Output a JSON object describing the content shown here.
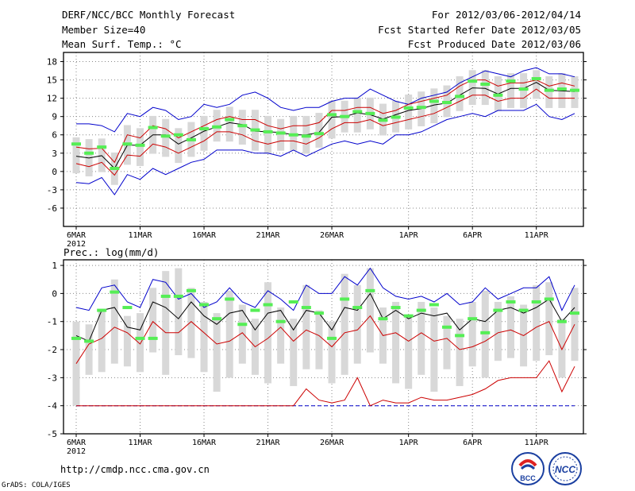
{
  "header": {
    "title": "DERF/NCC/BCC Monthly Forecast",
    "member_size": "Member Size=40",
    "variable": "Mean Surf. Temp.: °C",
    "period": "For 2012/03/06-2012/04/14",
    "refer_date": "Fcst Started Refer Date 2012/03/05",
    "produced_date": "Fcst Produced Date 2012/03/06"
  },
  "footer": {
    "url": "http://cmdp.ncc.cma.gov.cn",
    "credit": "GrADS: COLA/IGES",
    "logo_left": "BCC",
    "logo_right": "NCC"
  },
  "colors": {
    "envelope": "#0000cc",
    "inner": "#cc0000",
    "median": "#000000",
    "marker": "#55ee55",
    "box": "#d8d8d8",
    "grid": "#888888"
  },
  "chart_data": [
    {
      "type": "line",
      "name": "temperature",
      "title": "Mean Surf. Temp.: °C",
      "xlabel": "",
      "ylabel": "°C",
      "x_ticks": [
        "6MAR\n2012",
        "11MAR",
        "16MAR",
        "21MAR",
        "26MAR",
        "1APR",
        "6APR",
        "11APR"
      ],
      "x_tick_days": [
        0,
        5,
        10,
        15,
        20,
        26,
        31,
        36
      ],
      "yticks": [
        -6,
        -3,
        0,
        3,
        6,
        9,
        12,
        15,
        18
      ],
      "ylim": [
        -9,
        19.5
      ],
      "days": 40,
      "series": [
        {
          "name": "max",
          "values": [
            7.8,
            7.8,
            7.5,
            6.5,
            9.5,
            9.0,
            10.5,
            10.0,
            8.5,
            9.0,
            11.0,
            10.5,
            11.0,
            12.5,
            13.0,
            12.0,
            10.5,
            10.0,
            10.5,
            10.5,
            11.5,
            12.0,
            12.0,
            13.5,
            12.5,
            11.5,
            11.0,
            12.0,
            12.5,
            13.0,
            14.5,
            15.5,
            16.5,
            16.0,
            15.5,
            16.5,
            17.0,
            16.0,
            16.0,
            15.5
          ]
        },
        {
          "name": "upper",
          "values": [
            4.0,
            3.7,
            3.8,
            1.5,
            6.0,
            5.5,
            7.5,
            7.0,
            5.5,
            6.5,
            7.5,
            8.5,
            9.0,
            8.5,
            8.5,
            7.5,
            7.0,
            7.5,
            7.5,
            8.0,
            10.0,
            10.0,
            10.5,
            10.5,
            9.5,
            10.0,
            11.0,
            11.5,
            12.0,
            12.5,
            14.0,
            15.0,
            15.0,
            14.0,
            14.5,
            14.5,
            15.0,
            14.0,
            14.5,
            14.0
          ]
        },
        {
          "name": "median",
          "values": [
            2.5,
            2.2,
            2.6,
            0.5,
            4.3,
            4.3,
            6.0,
            6.0,
            4.5,
            5.5,
            6.6,
            7.3,
            8.0,
            7.7,
            6.6,
            6.5,
            6.4,
            6.0,
            6.0,
            6.4,
            8.9,
            9.0,
            9.6,
            9.3,
            8.6,
            9.3,
            10.0,
            10.3,
            10.9,
            11.2,
            12.5,
            13.7,
            13.6,
            12.7,
            13.6,
            13.6,
            14.6,
            13.3,
            13.2,
            13.1
          ]
        },
        {
          "name": "lower",
          "values": [
            1.3,
            0.8,
            1.5,
            -0.6,
            2.7,
            2.5,
            4.5,
            4.0,
            3.0,
            4.0,
            5.0,
            6.5,
            6.5,
            6.0,
            5.0,
            4.5,
            5.0,
            5.0,
            4.5,
            5.5,
            7.0,
            8.0,
            8.0,
            8.5,
            7.5,
            8.0,
            8.5,
            9.0,
            9.5,
            10.5,
            11.5,
            12.5,
            12.5,
            11.5,
            12.0,
            12.0,
            13.5,
            12.0,
            12.0,
            12.0
          ]
        },
        {
          "name": "min",
          "values": [
            -1.8,
            -2.0,
            -1.0,
            -3.8,
            -0.5,
            -1.3,
            0.5,
            -0.5,
            0.5,
            1.5,
            2.0,
            3.5,
            3.5,
            3.5,
            3.0,
            3.0,
            2.5,
            3.5,
            2.5,
            3.5,
            4.5,
            5.0,
            4.5,
            5.0,
            4.5,
            6.0,
            6.0,
            6.5,
            7.5,
            8.5,
            9.0,
            9.5,
            9.0,
            10.0,
            10.0,
            10.0,
            11.0,
            9.0,
            8.5,
            9.5
          ]
        },
        {
          "name": "observed_marker",
          "values": [
            4.5,
            3.0,
            4.0,
            0.5,
            4.5,
            4.3,
            7.2,
            5.8,
            6.0,
            5.2,
            7.0,
            7.3,
            8.5,
            7.5,
            6.8,
            6.5,
            6.3,
            6.0,
            5.8,
            6.2,
            9.3,
            9.0,
            9.8,
            9.5,
            8.4,
            8.9,
            10.4,
            10.5,
            11.5,
            11.3,
            12.3,
            14.8,
            14.3,
            12.5,
            14.8,
            13.5,
            15.2,
            13.3,
            13.5,
            13.3
          ]
        }
      ]
    },
    {
      "type": "line",
      "name": "precipitation",
      "title": "Prec.: log(mm/d)",
      "xlabel": "",
      "ylabel": "log(mm/d)",
      "x_ticks": [
        "6MAR\n2012",
        "11MAR",
        "16MAR",
        "21MAR",
        "26MAR",
        "1APR",
        "6APR",
        "11APR"
      ],
      "x_tick_days": [
        0,
        5,
        10,
        15,
        20,
        26,
        31,
        36
      ],
      "yticks": [
        -5,
        -4,
        -3,
        -2,
        -1,
        0,
        1
      ],
      "ylim": [
        -5,
        1.2
      ],
      "days": 40,
      "series": [
        {
          "name": "max",
          "values": [
            -0.5,
            -0.6,
            0.2,
            0.3,
            -0.3,
            -0.5,
            0.5,
            0.4,
            -0.2,
            0.0,
            -0.5,
            -0.3,
            0.2,
            -0.3,
            -0.5,
            0.1,
            -0.2,
            -0.6,
            0.3,
            0.0,
            0.0,
            0.6,
            0.3,
            0.9,
            0.2,
            -0.1,
            -0.2,
            -0.1,
            -0.3,
            0.0,
            -0.4,
            -0.3,
            0.2,
            -0.2,
            0.0,
            0.2,
            0.2,
            0.6,
            -0.6,
            0.3
          ]
        },
        {
          "name": "median",
          "values": [
            -1.5,
            -1.7,
            -0.6,
            -0.5,
            -1.2,
            -1.3,
            -0.3,
            -0.5,
            -0.9,
            -0.3,
            -0.8,
            -1.1,
            -0.7,
            -0.6,
            -1.3,
            -0.7,
            -0.6,
            -1.3,
            -0.6,
            -0.7,
            -1.3,
            -0.5,
            -0.6,
            0.0,
            -0.9,
            -0.6,
            -0.9,
            -0.7,
            -0.8,
            -0.7,
            -1.3,
            -0.9,
            -1.0,
            -0.6,
            -0.5,
            -0.7,
            -0.5,
            -0.2,
            -1.0,
            -0.5
          ]
        },
        {
          "name": "p75",
          "values": [
            -2.5,
            -1.8,
            -1.6,
            -1.2,
            -1.4,
            -1.8,
            -1.0,
            -1.4,
            -1.4,
            -1.0,
            -1.4,
            -1.8,
            -1.7,
            -1.4,
            -1.9,
            -1.6,
            -1.2,
            -1.7,
            -1.3,
            -1.5,
            -1.9,
            -1.4,
            -1.3,
            -0.8,
            -1.5,
            -1.4,
            -1.7,
            -1.4,
            -1.7,
            -1.6,
            -2.0,
            -1.9,
            -1.7,
            -1.4,
            -1.3,
            -1.5,
            -1.2,
            -1.0,
            -2.0,
            -1.1
          ]
        },
        {
          "name": "p90",
          "values": [
            -4,
            -4,
            -4,
            -4,
            -4,
            -4,
            -4,
            -4,
            -4,
            -4,
            -4,
            -4,
            -4,
            -4,
            -4,
            -4,
            -4,
            -4,
            -3.4,
            -3.8,
            -3.9,
            -3.8,
            -3.0,
            -4.0,
            -3.8,
            -3.9,
            -3.9,
            -3.7,
            -3.8,
            -3.8,
            -3.7,
            -3.6,
            -3.4,
            -3.1,
            -3.0,
            -3.0,
            -3.0,
            -2.4,
            -3.5,
            -2.6
          ]
        },
        {
          "name": "min",
          "values": [
            -4,
            -4,
            -4,
            -4,
            -4,
            -4,
            -4,
            -4,
            -4,
            -4,
            -4,
            -4,
            -4,
            -4,
            -4,
            -4,
            -4,
            -4,
            -4,
            -4,
            -4,
            -4,
            -4,
            -4,
            -4,
            -4,
            -4,
            -4,
            -4,
            -4,
            -4,
            -4,
            -4,
            -4,
            -4,
            -4,
            -4,
            -4,
            -4,
            -4
          ]
        },
        {
          "name": "observed_marker",
          "values": [
            -1.6,
            -1.7,
            -0.6,
            0.05,
            -0.5,
            -1.6,
            -1.6,
            -0.1,
            -0.1,
            0.1,
            -0.4,
            -0.9,
            -0.2,
            -1.1,
            -0.6,
            -0.4,
            -1.0,
            -0.3,
            -0.5,
            -0.7,
            -1.6,
            -0.2,
            -0.5,
            0.1,
            -0.9,
            -0.5,
            -0.8,
            -0.6,
            -0.4,
            -1.2,
            -1.5,
            -0.9,
            -1.4,
            -0.6,
            -0.3,
            -0.6,
            -0.3,
            -0.2,
            -1.0,
            -0.7
          ]
        },
        {
          "name": "box_top",
          "values": [
            -1.0,
            -1.1,
            -0.6,
            0.5,
            -0.8,
            -0.7,
            0.2,
            0.8,
            0.9,
            0.2,
            -0.3,
            -0.7,
            0.1,
            -0.4,
            -0.9,
            0.4,
            -0.5,
            -0.9,
            0.3,
            -0.6,
            -1.0,
            0.7,
            0.3,
            0.9,
            -0.5,
            -0.3,
            -0.8,
            -0.3,
            -0.5,
            -0.8,
            -0.9,
            -0.3,
            0.1,
            -0.3,
            -0.1,
            -0.4,
            0.3,
            0.4,
            -0.9,
            0.2
          ]
        },
        {
          "name": "box_bottom",
          "values": [
            -4.0,
            -2.9,
            -2.8,
            -2.5,
            -2.6,
            -2.8,
            -2.1,
            -2.9,
            -2.2,
            -2.3,
            -2.8,
            -3.5,
            -3.0,
            -2.5,
            -2.9,
            -3.2,
            -2.5,
            -3.3,
            -2.7,
            -2.7,
            -3.2,
            -2.9,
            -2.5,
            -2.1,
            -2.5,
            -3.2,
            -3.4,
            -2.9,
            -3.5,
            -2.7,
            -3.3,
            -2.6,
            -3.0,
            -2.4,
            -2.3,
            -2.6,
            -2.4,
            -2.2,
            -3.0,
            -2.4
          ]
        }
      ]
    }
  ]
}
